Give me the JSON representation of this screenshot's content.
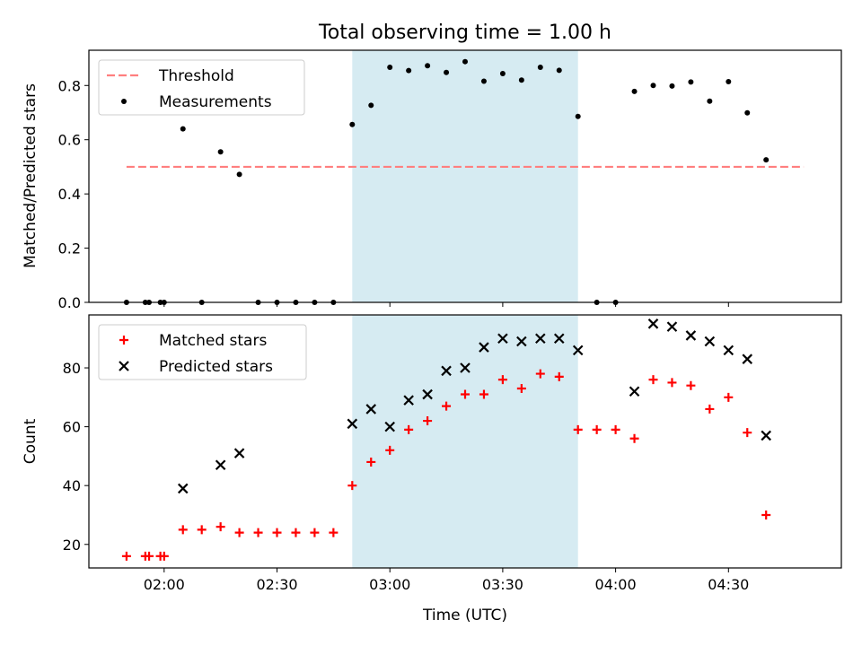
{
  "chart_data": [
    {
      "type": "scatter",
      "title": "Total observing time = 1.00 h",
      "xlabel": "",
      "ylabel": "Matched/Predicted stars",
      "xlim": [
        "01:40",
        "05:00"
      ],
      "ylim": [
        0.0,
        0.93
      ],
      "yticks": [
        0.0,
        0.2,
        0.4,
        0.6,
        0.8
      ],
      "ytick_labels": [
        "0.0",
        "0.2",
        "0.4",
        "0.6",
        "0.8"
      ],
      "highlight_span": {
        "x0": "02:50",
        "x1": "03:50",
        "color": "#add8e6"
      },
      "threshold": {
        "name": "Threshold",
        "value": 0.5,
        "x0": "01:50",
        "x1": "04:50",
        "color": "#ff7f7f"
      },
      "legend_position": "top-left",
      "series": [
        {
          "name": "Measurements",
          "color": "#000000",
          "marker": "dot",
          "points": [
            [
              "01:50",
              0.0
            ],
            [
              "01:55",
              0.0
            ],
            [
              "01:56",
              0.0
            ],
            [
              "01:59",
              0.0
            ],
            [
              "02:00",
              0.0
            ],
            [
              "02:05",
              0.64
            ],
            [
              "02:10",
              0.0
            ],
            [
              "02:15",
              0.555
            ],
            [
              "02:20",
              0.472
            ],
            [
              "02:25",
              0.0
            ],
            [
              "02:30",
              0.0
            ],
            [
              "02:35",
              0.0
            ],
            [
              "02:40",
              0.0
            ],
            [
              "02:45",
              0.0
            ],
            [
              "02:50",
              0.656
            ],
            [
              "02:55",
              0.727
            ],
            [
              "03:00",
              0.867
            ],
            [
              "03:05",
              0.855
            ],
            [
              "03:10",
              0.873
            ],
            [
              "03:15",
              0.848
            ],
            [
              "03:20",
              0.888
            ],
            [
              "03:25",
              0.816
            ],
            [
              "03:30",
              0.844
            ],
            [
              "03:35",
              0.82
            ],
            [
              "03:40",
              0.867
            ],
            [
              "03:45",
              0.856
            ],
            [
              "03:50",
              0.686
            ],
            [
              "03:55",
              0.0
            ],
            [
              "04:00",
              0.0
            ],
            [
              "04:05",
              0.778
            ],
            [
              "04:10",
              0.8
            ],
            [
              "04:15",
              0.798
            ],
            [
              "04:20",
              0.813
            ],
            [
              "04:25",
              0.742
            ],
            [
              "04:30",
              0.814
            ],
            [
              "04:35",
              0.699
            ],
            [
              "04:40",
              0.526
            ]
          ]
        }
      ]
    },
    {
      "type": "scatter",
      "xlabel": "Time (UTC)",
      "ylabel": "Count",
      "xlim": [
        "01:40",
        "05:00"
      ],
      "ylim": [
        12,
        98
      ],
      "yticks": [
        20,
        40,
        60,
        80
      ],
      "ytick_labels": [
        "20",
        "40",
        "60",
        "80"
      ],
      "xticks": [
        "02:00",
        "02:30",
        "03:00",
        "03:30",
        "04:00",
        "04:30"
      ],
      "xtick_labels": [
        "02:00",
        "02:30",
        "03:00",
        "03:30",
        "04:00",
        "04:30"
      ],
      "highlight_span": {
        "x0": "02:50",
        "x1": "03:50",
        "color": "#add8e6"
      },
      "legend_position": "top-left",
      "series": [
        {
          "name": "Matched stars",
          "color": "#ff0000",
          "marker": "plus",
          "points": [
            [
              "01:50",
              16
            ],
            [
              "01:55",
              16
            ],
            [
              "01:56",
              16
            ],
            [
              "01:59",
              16
            ],
            [
              "02:00",
              16
            ],
            [
              "02:05",
              25
            ],
            [
              "02:10",
              25
            ],
            [
              "02:15",
              26
            ],
            [
              "02:20",
              24
            ],
            [
              "02:25",
              24
            ],
            [
              "02:30",
              24
            ],
            [
              "02:35",
              24
            ],
            [
              "02:40",
              24
            ],
            [
              "02:45",
              24
            ],
            [
              "02:50",
              40
            ],
            [
              "02:55",
              48
            ],
            [
              "03:00",
              52
            ],
            [
              "03:05",
              59
            ],
            [
              "03:10",
              62
            ],
            [
              "03:15",
              67
            ],
            [
              "03:20",
              71
            ],
            [
              "03:25",
              71
            ],
            [
              "03:30",
              76
            ],
            [
              "03:35",
              73
            ],
            [
              "03:40",
              78
            ],
            [
              "03:45",
              77
            ],
            [
              "03:50",
              59
            ],
            [
              "03:55",
              59
            ],
            [
              "04:00",
              59
            ],
            [
              "04:05",
              56
            ],
            [
              "04:10",
              76
            ],
            [
              "04:15",
              75
            ],
            [
              "04:20",
              74
            ],
            [
              "04:25",
              66
            ],
            [
              "04:30",
              70
            ],
            [
              "04:35",
              58
            ],
            [
              "04:40",
              30
            ]
          ]
        },
        {
          "name": "Predicted stars",
          "color": "#000000",
          "marker": "x",
          "points": [
            [
              "02:05",
              39
            ],
            [
              "02:15",
              47
            ],
            [
              "02:20",
              51
            ],
            [
              "02:50",
              61
            ],
            [
              "02:55",
              66
            ],
            [
              "03:00",
              60
            ],
            [
              "03:05",
              69
            ],
            [
              "03:10",
              71
            ],
            [
              "03:15",
              79
            ],
            [
              "03:20",
              80
            ],
            [
              "03:25",
              87
            ],
            [
              "03:30",
              90
            ],
            [
              "03:35",
              89
            ],
            [
              "03:40",
              90
            ],
            [
              "03:45",
              90
            ],
            [
              "03:50",
              86
            ],
            [
              "04:05",
              72
            ],
            [
              "04:10",
              95
            ],
            [
              "04:15",
              94
            ],
            [
              "04:20",
              91
            ],
            [
              "04:25",
              89
            ],
            [
              "04:30",
              86
            ],
            [
              "04:35",
              83
            ],
            [
              "04:40",
              57
            ]
          ]
        }
      ]
    }
  ]
}
